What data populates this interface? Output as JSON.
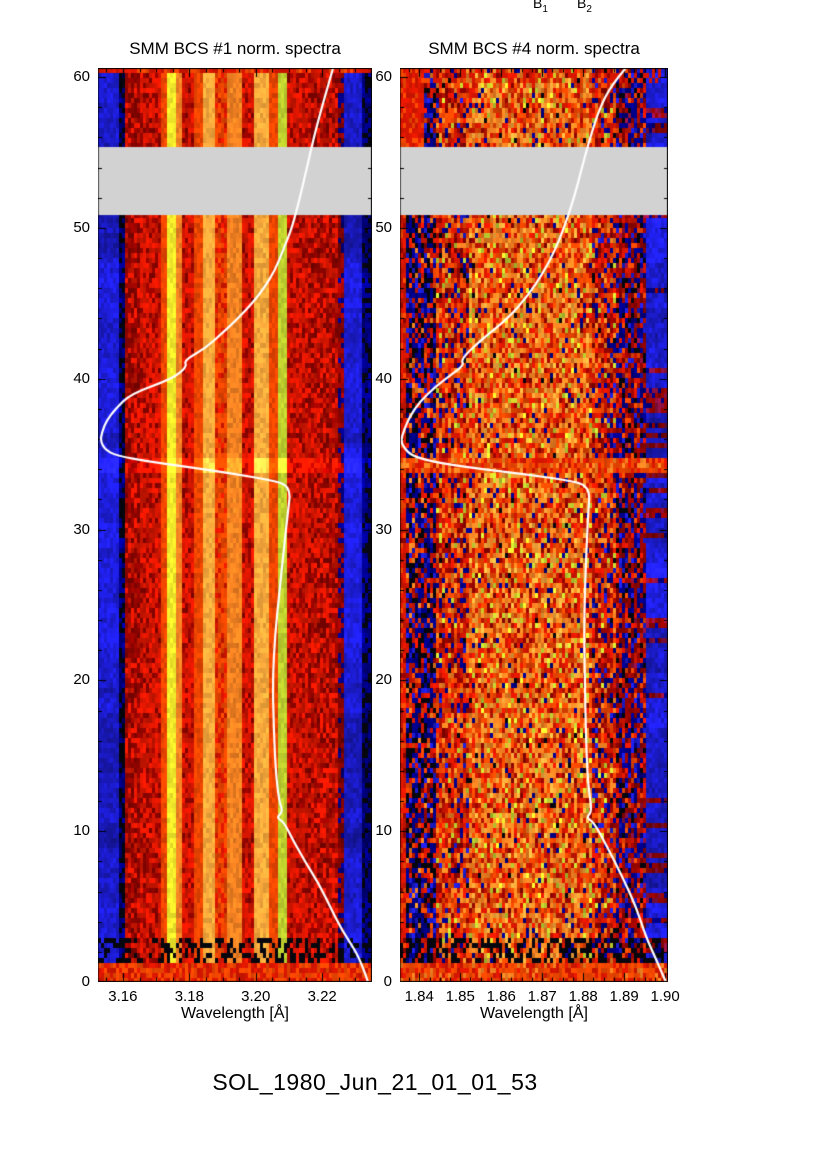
{
  "figure": {
    "background": "#ffffff",
    "caption": "SOL_1980_Jun_21_01_01_53",
    "top_labels": [
      {
        "base": "B",
        "sub": "1"
      },
      {
        "base": "B",
        "sub": "2"
      }
    ]
  },
  "render": {
    "palette": {
      "navy": "#000085",
      "blue": "#1c1cd0",
      "black": "#06060e",
      "darkred": "#8f0400",
      "red": "#d81600",
      "orangered": "#ef4600",
      "orange": "#f58222",
      "lightorange": "#fbaa3c",
      "yellow": "#f2ea2a",
      "yellowgreen": "#bfd02e",
      "maroon": "#8c1040",
      "gray": "#d2d2d2",
      "curve_white": "#ffffff",
      "axis_black": "#000000"
    }
  },
  "chart_data": [
    {
      "type": "heatmap",
      "title": "SMM BCS #1 norm. spectra",
      "xlabel": "Wavelength [Å]",
      "ylabel": "",
      "x_ticks": [
        3.16,
        3.18,
        3.2,
        3.22
      ],
      "x_tick_labels": [
        "3.16",
        "3.18",
        "3.20",
        "3.22"
      ],
      "x_minor_step": 0.005,
      "xlim": [
        3.1525,
        3.235
      ],
      "y_ticks": [
        0,
        10,
        20,
        30,
        40,
        50,
        60
      ],
      "y_tick_labels": [
        "0",
        "10",
        "20",
        "30",
        "40",
        "50",
        "60"
      ],
      "y_minor_step": 2,
      "ylim": [
        0,
        60.6
      ],
      "colormap": "blue-red rainbow (blue=low, red/orange=high, yellow=peak)",
      "data_gap": {
        "t0": 50.85,
        "t1": 55.36,
        "color": "#d2d2d2"
      },
      "spectral_features": [
        {
          "wavelength_A": 3.177,
          "note": "bright narrow emission line (yellow stripe)"
        },
        {
          "wavelength_A": 3.209,
          "note": "second bright line (yellow-green stripe)"
        }
      ],
      "lightcurve": {
        "color": "#ffffff",
        "note": "overlaid normalized light curve, intensity increases to the left, time runs upward",
        "points": [
          [
            0,
            3.2338
          ],
          [
            1,
            3.2322
          ],
          [
            2,
            3.2302
          ],
          [
            3.5,
            3.2258
          ],
          [
            5,
            3.2224
          ],
          [
            6.5,
            3.219
          ],
          [
            8,
            3.2148
          ],
          [
            9.5,
            3.211
          ],
          [
            10.6,
            3.2085
          ],
          [
            10.9,
            3.2062
          ],
          [
            11.3,
            3.2082
          ],
          [
            12,
            3.207
          ],
          [
            14,
            3.206
          ],
          [
            17,
            3.2054
          ],
          [
            20,
            3.2051
          ],
          [
            23,
            3.2058
          ],
          [
            26,
            3.2072
          ],
          [
            29,
            3.2086
          ],
          [
            31,
            3.2096
          ],
          [
            32.9,
            3.2106
          ],
          [
            33.3,
            3.204
          ],
          [
            33.7,
            3.193
          ],
          [
            34.1,
            3.181
          ],
          [
            34.5,
            3.168
          ],
          [
            34.9,
            3.158
          ],
          [
            35.3,
            3.1546
          ],
          [
            35.9,
            3.1532
          ],
          [
            36.5,
            3.1538
          ],
          [
            37.2,
            3.155
          ],
          [
            38,
            3.1578
          ],
          [
            39,
            3.1624
          ],
          [
            40,
            3.175
          ],
          [
            40.8,
            3.1793
          ],
          [
            41.2,
            3.1784
          ],
          [
            42,
            3.1847
          ],
          [
            43,
            3.1898
          ],
          [
            44,
            3.1947
          ],
          [
            45,
            3.1989
          ],
          [
            46,
            3.2025
          ],
          [
            47.2,
            3.2058
          ],
          [
            48.5,
            3.2082
          ],
          [
            50,
            3.2109
          ],
          [
            52,
            3.2133
          ],
          [
            54,
            3.2154
          ],
          [
            56,
            3.2175
          ],
          [
            58,
            3.2199
          ],
          [
            60.6,
            3.2233
          ]
        ]
      },
      "texture": {
        "seed": 1337,
        "cell": [
          3,
          5
        ],
        "bands": [
          {
            "u0": 0.0,
            "u1": 0.072,
            "c": "blue",
            "n": 0.35,
            "rowmod": 1
          },
          {
            "u0": 0.072,
            "u1": 0.102,
            "c": "navy",
            "n": 0.6,
            "rowmod": 1,
            "speck": {
              "c": "black",
              "p": 0.45
            }
          },
          {
            "u0": 0.102,
            "u1": 0.15,
            "c": "darkred",
            "n": 0.45,
            "speck": {
              "c": "red",
              "p": 0.35
            }
          },
          {
            "u0": 0.15,
            "u1": 0.235,
            "c": "red",
            "n": 0.4,
            "speck": {
              "c": "darkred",
              "p": 0.25
            }
          },
          {
            "u0": 0.235,
            "u1": 0.252,
            "c": "orangered",
            "n": 0.3
          },
          {
            "u0": 0.252,
            "u1": 0.285,
            "c": "yellow",
            "n": 0.18
          },
          {
            "u0": 0.285,
            "u1": 0.302,
            "c": "orange",
            "n": 0.25
          },
          {
            "u0": 0.302,
            "u1": 0.348,
            "c": "red",
            "n": 0.4,
            "speck": {
              "c": "darkred",
              "p": 0.2
            }
          },
          {
            "u0": 0.348,
            "u1": 0.378,
            "c": "orangered",
            "n": 0.3
          },
          {
            "u0": 0.378,
            "u1": 0.432,
            "c": "lightorange",
            "n": 0.25
          },
          {
            "u0": 0.432,
            "u1": 0.468,
            "c": "orangered",
            "n": 0.35,
            "speck": {
              "c": "red",
              "p": 0.3
            }
          },
          {
            "u0": 0.468,
            "u1": 0.525,
            "c": "orange",
            "n": 0.3
          },
          {
            "u0": 0.525,
            "u1": 0.565,
            "c": "red",
            "n": 0.4,
            "speck": {
              "c": "darkred",
              "p": 0.2
            }
          },
          {
            "u0": 0.565,
            "u1": 0.625,
            "c": "lightorange",
            "n": 0.28
          },
          {
            "u0": 0.625,
            "u1": 0.66,
            "c": "orangered",
            "n": 0.3
          },
          {
            "u0": 0.66,
            "u1": 0.69,
            "c": "yellowgreen",
            "n": 0.2
          },
          {
            "u0": 0.69,
            "u1": 0.77,
            "c": "red",
            "n": 0.4,
            "speck": {
              "c": "darkred",
              "p": 0.25
            }
          },
          {
            "u0": 0.77,
            "u1": 0.875,
            "c": "red",
            "n": 0.5,
            "speck": {
              "c": "darkred",
              "p": 0.45
            }
          },
          {
            "u0": 0.875,
            "u1": 0.897,
            "c": "darkred",
            "n": 0.5,
            "rowmod": 1,
            "speck": {
              "c": "navy",
              "p": 0.3
            }
          },
          {
            "u0": 0.897,
            "u1": 0.963,
            "c": "blue",
            "n": 0.35,
            "rowmod": 1
          },
          {
            "u0": 0.963,
            "u1": 1.0,
            "c": "navy",
            "n": 0.5,
            "rowmod": 1,
            "speck": {
              "c": "black",
              "p": 0.3
            }
          }
        ],
        "row_effects": [
          {
            "t0": -0.1,
            "t1": 1.4,
            "type": "override",
            "mix": {
              "orangered": 0.5,
              "red": 0.5
            }
          },
          {
            "t0": 1.4,
            "t1": 3.0,
            "type": "speckle",
            "color": "black",
            "p": 0.4
          },
          {
            "t0": 33.9,
            "t1": 34.8,
            "type": "lighten",
            "f": 1.35
          },
          {
            "t0": 60.25,
            "t1": 60.7,
            "type": "override",
            "mix": {
              "red": 0.7,
              "orangered": 0.3
            }
          }
        ]
      }
    },
    {
      "type": "heatmap",
      "title": "SMM BCS #4 norm. spectra",
      "xlabel": "Wavelength [Å]",
      "ylabel": "",
      "x_ticks": [
        1.84,
        1.85,
        1.86,
        1.87,
        1.88,
        1.89,
        1.9
      ],
      "x_tick_labels": [
        "1.84",
        "1.85",
        "1.86",
        "1.87",
        "1.88",
        "1.89",
        "1.90"
      ],
      "x_minor_step": 0.0025,
      "xlim": [
        1.8353,
        1.9007
      ],
      "y_ticks": [
        0,
        10,
        20,
        30,
        40,
        50,
        60
      ],
      "y_tick_labels": [
        "0",
        "10",
        "20",
        "30",
        "40",
        "50",
        "60"
      ],
      "y_minor_step": 2,
      "ylim": [
        0,
        60.6
      ],
      "colormap": "blue-red rainbow, strongly speckled (noisier channel)",
      "data_gap": {
        "t0": 50.85,
        "t1": 55.36,
        "color": "#d2d2d2"
      },
      "spectral_features": [
        {
          "wavelength_A": 1.855,
          "note": "bright horizontal flare band near t=34"
        },
        {
          "wavelength_A": 1.895,
          "note": "smooth blue/maroon banded column at right edge"
        }
      ],
      "lightcurve": {
        "color": "#ffffff",
        "note": "overlaid normalized light curve, intensity increases to the left, time runs upward",
        "points": [
          [
            0,
            1.9002
          ],
          [
            1.5,
            1.8978
          ],
          [
            3,
            1.8953
          ],
          [
            5,
            1.8929
          ],
          [
            7,
            1.8895
          ],
          [
            9,
            1.8858
          ],
          [
            10.6,
            1.8826
          ],
          [
            10.9,
            1.8807
          ],
          [
            11.3,
            1.8822
          ],
          [
            13,
            1.8812
          ],
          [
            16,
            1.8807
          ],
          [
            20,
            1.8804
          ],
          [
            24,
            1.8802
          ],
          [
            28,
            1.8807
          ],
          [
            31,
            1.8812
          ],
          [
            32.9,
            1.8817
          ],
          [
            33.3,
            1.8756
          ],
          [
            33.7,
            1.8646
          ],
          [
            34.1,
            1.8524
          ],
          [
            34.5,
            1.8431
          ],
          [
            34.9,
            1.8382
          ],
          [
            35.4,
            1.8363
          ],
          [
            35.9,
            1.8355
          ],
          [
            36.6,
            1.8363
          ],
          [
            37.5,
            1.8377
          ],
          [
            38.5,
            1.8402
          ],
          [
            39.5,
            1.8441
          ],
          [
            40.3,
            1.848
          ],
          [
            40.9,
            1.8509
          ],
          [
            41.3,
            1.8502
          ],
          [
            42.5,
            1.8548
          ],
          [
            44,
            1.8617
          ],
          [
            45.5,
            1.8665
          ],
          [
            47,
            1.8702
          ],
          [
            48.5,
            1.8731
          ],
          [
            50,
            1.8753
          ],
          [
            52,
            1.8778
          ],
          [
            54,
            1.8797
          ],
          [
            56,
            1.8817
          ],
          [
            58,
            1.8841
          ],
          [
            59.5,
            1.887
          ],
          [
            60.6,
            1.8904
          ]
        ]
      },
      "texture": {
        "seed": 4242,
        "cell": [
          3,
          5
        ],
        "bands": [
          {
            "u0": 0.0,
            "u1": 0.018,
            "mix": {
              "red": 0.7,
              "orangered": 0.2,
              "darkred": 0.1
            },
            "n": 0.3
          },
          {
            "u0": 0.018,
            "u1": 0.13,
            "mix": {
              "navy": 0.3,
              "black": 0.22,
              "blue": 0.13,
              "red": 0.18,
              "darkred": 0.07,
              "orangered": 0.06,
              "orange": 0.04
            },
            "n": 0.4
          },
          {
            "u0": 0.13,
            "u1": 0.26,
            "mix": {
              "red": 0.28,
              "orangered": 0.22,
              "darkred": 0.16,
              "orange": 0.14,
              "navy": 0.1,
              "blue": 0.04,
              "yellowgreen": 0.04,
              "black": 0.02
            },
            "n": 0.4
          },
          {
            "u0": 0.26,
            "u1": 0.72,
            "mix": {
              "orange": 0.28,
              "orangered": 0.24,
              "red": 0.18,
              "lightorange": 0.12,
              "darkred": 0.05,
              "yellowgreen": 0.06,
              "navy": 0.04,
              "yellow": 0.02,
              "black": 0.01
            },
            "n": 0.4
          },
          {
            "u0": 0.72,
            "u1": 0.805,
            "mix": {
              "red": 0.28,
              "orangered": 0.2,
              "darkred": 0.18,
              "orange": 0.12,
              "navy": 0.12,
              "blue": 0.04,
              "yellowgreen": 0.04,
              "black": 0.02
            },
            "n": 0.4
          },
          {
            "u0": 0.805,
            "u1": 0.915,
            "mix": {
              "darkred": 0.3,
              "red": 0.18,
              "navy": 0.22,
              "black": 0.1,
              "blue": 0.1,
              "orangered": 0.08,
              "maroon": 0.02
            },
            "n": 0.45
          },
          {
            "u0": 0.915,
            "u1": 1.0,
            "c": "blue",
            "n": 0.4,
            "rowmod": 1,
            "rowswap": {
              "p": 0.22,
              "mix": {
                "darkred": 0.5,
                "maroon": 0.3,
                "navy": 0.2
              }
            }
          }
        ],
        "row_effects": [
          {
            "t0": -0.1,
            "t1": 1.4,
            "type": "override",
            "mix": {
              "orangered": 0.55,
              "red": 0.35,
              "orange": 0.1
            }
          },
          {
            "t0": 1.4,
            "t1": 3.0,
            "type": "speckle",
            "color": "black",
            "p": 0.4
          },
          {
            "t0": 33.8,
            "t1": 34.7,
            "type": "override",
            "mix": {
              "orangered": 0.45,
              "red": 0.3,
              "orange": 0.25
            }
          },
          {
            "t0": 59.6,
            "t1": 60.7,
            "type": "speckle",
            "color": "red",
            "p": 0.35
          },
          {
            "t0": 55.36,
            "t1": 60.7,
            "umax": 0.085,
            "type": "override",
            "mix": {
              "red": 0.8,
              "orangered": 0.2
            }
          }
        ]
      }
    }
  ]
}
